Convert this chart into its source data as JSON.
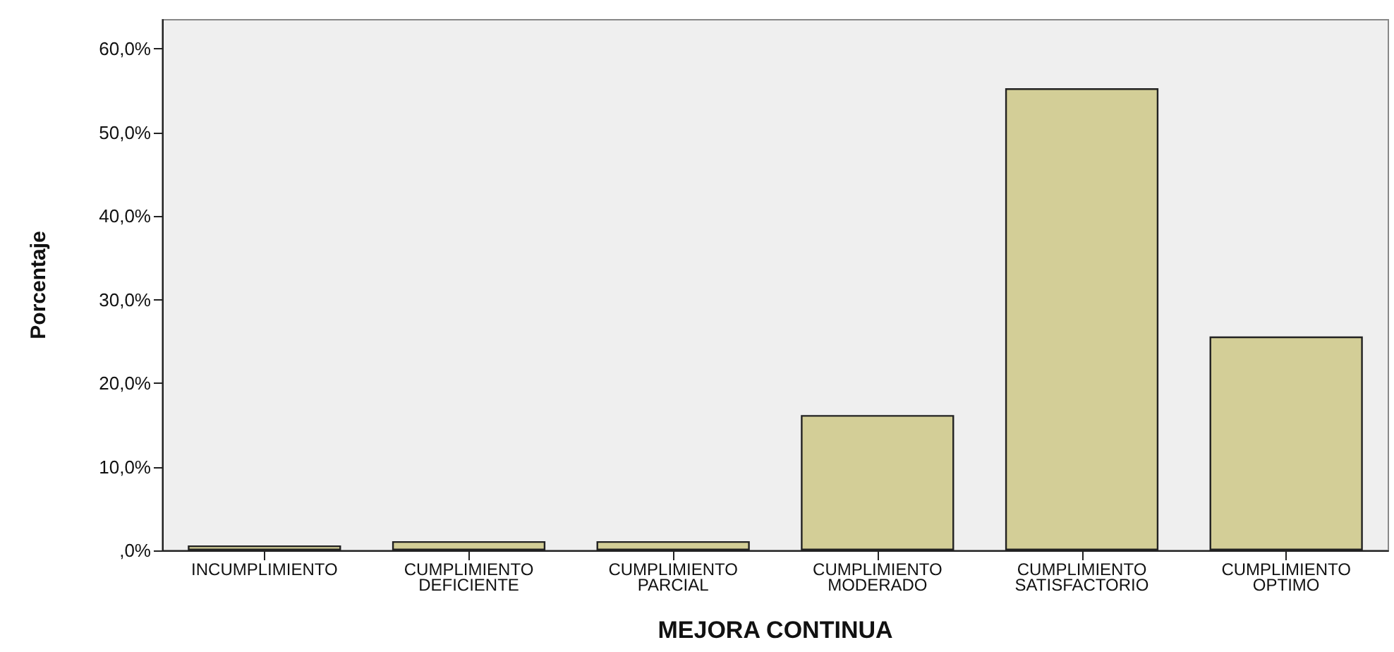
{
  "chart_data": {
    "type": "bar",
    "xlabel": "MEJORA CONTINUA",
    "ylabel": "Porcentaje",
    "categories": [
      "INCUMPLIMIENTO",
      "CUMPLIMIENTO\nDEFICIENTE",
      "CUMPLIMIENTO\nPARCIAL",
      "CUMPLIMIENTO\nMODERADO",
      "CUMPLIMIENTO\nSATISFACTORIO",
      "CUMPLIMIENTO\nOPTIMO"
    ],
    "values": [
      0.6,
      1.1,
      1.1,
      16.2,
      55.3,
      25.6
    ],
    "color": "#d3ce97",
    "ylim": [
      0,
      63.5
    ],
    "yticks": [
      {
        "value": 0,
        "label": ",0%"
      },
      {
        "value": 10,
        "label": "10,0%"
      },
      {
        "value": 20,
        "label": "20,0%"
      },
      {
        "value": 30,
        "label": "30,0%"
      },
      {
        "value": 40,
        "label": "40,0%"
      },
      {
        "value": 50,
        "label": "50,0%"
      },
      {
        "value": 60,
        "label": "60,0%"
      }
    ],
    "grid": false
  }
}
